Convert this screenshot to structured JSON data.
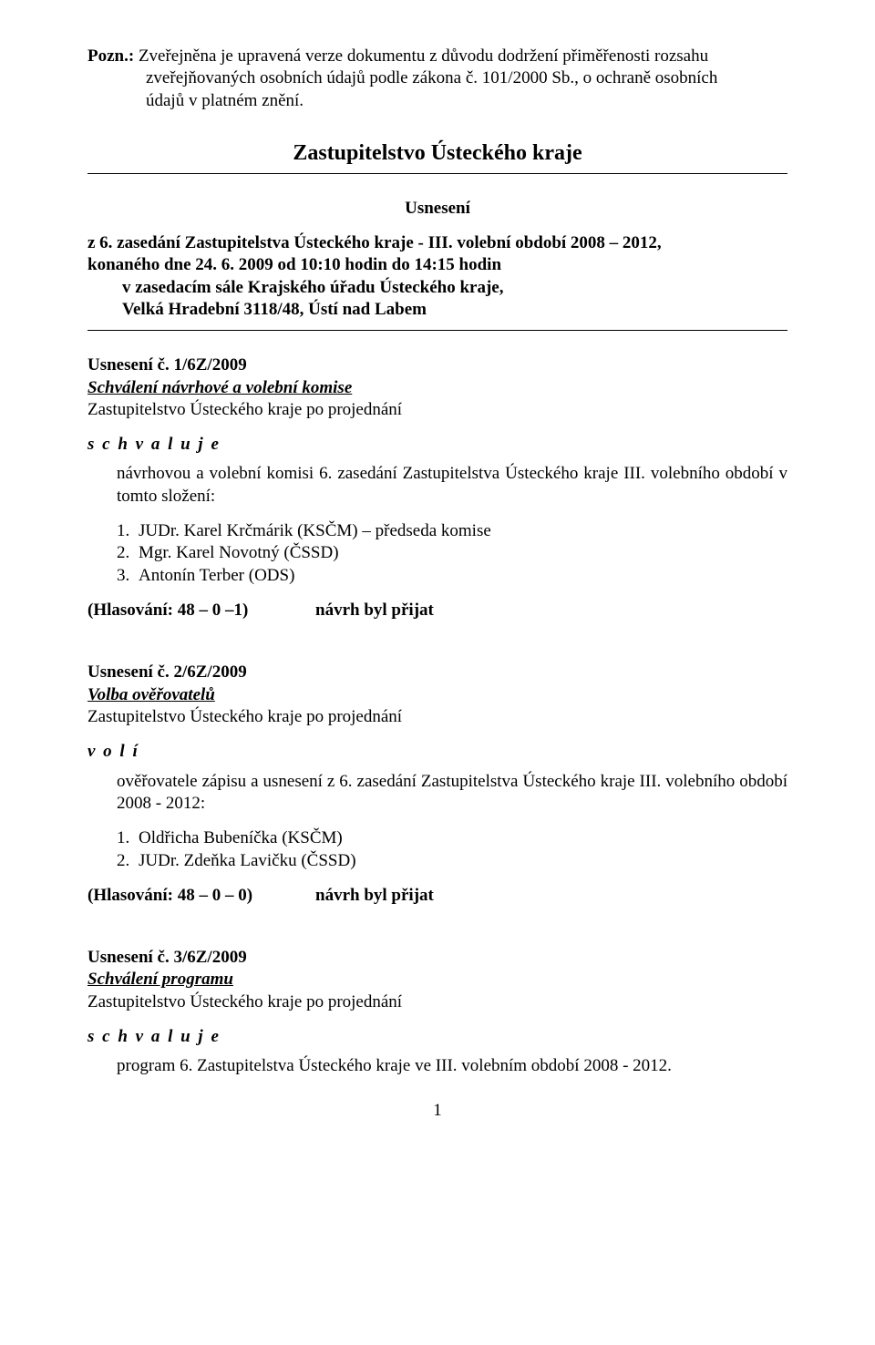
{
  "note": {
    "label": "Pozn.:",
    "line1_rest": " Zveřejněna je upravená verze dokumentu z důvodu dodržení přiměřenosti rozsahu",
    "line2": "zveřejňovaných osobních údajů podle zákona č. 101/2000 Sb., o ochraně osobních",
    "line3": "údajů v platném znění."
  },
  "title": "Zastupitelstvo Ústeckého kraje",
  "subtitle": "Usnesení",
  "session": {
    "l1": "z 6. zasedání Zastupitelstva Ústeckého kraje - III. volební období 2008 – 2012,",
    "l2": "konaného dne 24. 6. 2009 od 10:10 hodin do 14:15 hodin",
    "l3": "v zasedacím sále Krajského úřadu Ústeckého kraje,",
    "l4": "Velká Hradební 3118/48, Ústí nad Labem"
  },
  "resolutions": [
    {
      "num": "Usnesení č. 1/6Z/2009",
      "title": "Schválení návrhové a volební komise",
      "after": "Zastupitelstvo Ústeckého kraje po projednání",
      "verb": "s c h v a l u j e",
      "intro": "návrhovou a volební komisi 6. zasedání Zastupitelstva Ústeckého kraje III. volebního období v tomto složení:",
      "items": [
        "JUDr. Karel Krčmárik (KSČM) – předseda komise",
        "Mgr. Karel Novotný (ČSSD)",
        "Antonín Terber (ODS)"
      ],
      "vote_left": "(Hlasování: 48 – 0 –1)",
      "vote_right": "návrh byl přijat"
    },
    {
      "num": "Usnesení č. 2/6Z/2009",
      "title": "Volba ověřovatelů",
      "after": "Zastupitelstvo Ústeckého kraje po projednání",
      "verb": "v o l í",
      "intro": "ověřovatele zápisu a usnesení z 6. zasedání Zastupitelstva Ústeckého kraje III. volebního období 2008 - 2012:",
      "items": [
        "Oldřicha Bubeníčka (KSČM)",
        "JUDr. Zdeňka Lavičku (ČSSD)"
      ],
      "vote_left": "(Hlasování: 48 – 0 – 0)",
      "vote_right": "návrh byl přijat"
    },
    {
      "num": "Usnesení č. 3/6Z/2009",
      "title": "Schválení programu",
      "after": "Zastupitelstvo Ústeckého kraje po projednání",
      "verb": "s c h v a l u j e",
      "intro": "program 6. Zastupitelstva Ústeckého kraje ve III. volebním období 2008 - 2012.",
      "items": [],
      "vote_left": "",
      "vote_right": ""
    }
  ],
  "page_number": "1"
}
